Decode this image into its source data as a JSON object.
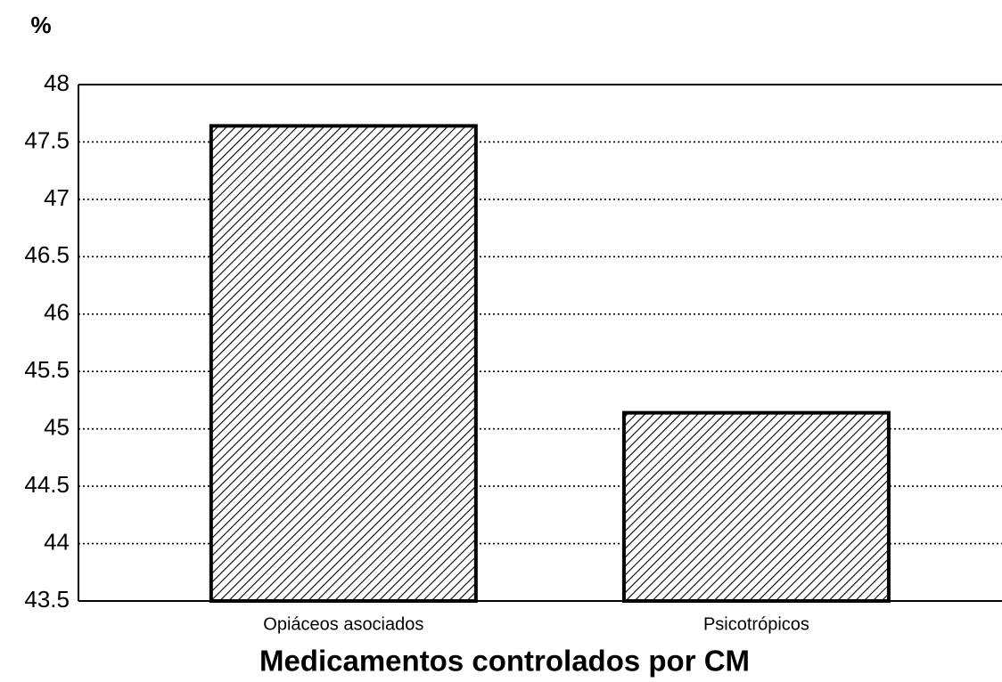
{
  "chart_data": {
    "type": "bar",
    "title": "Medicamentos controlados por CM",
    "ylabel": "%",
    "categories": [
      "Opiáceos asociados",
      "Psicotrópicos"
    ],
    "values": [
      47.64,
      45.14
    ],
    "color": "#000000",
    "ylim": [
      43.5,
      48
    ],
    "yticks": [
      43.5,
      44,
      44.5,
      45,
      45.5,
      46,
      46.5,
      47,
      47.5,
      48
    ],
    "grid": true
  }
}
